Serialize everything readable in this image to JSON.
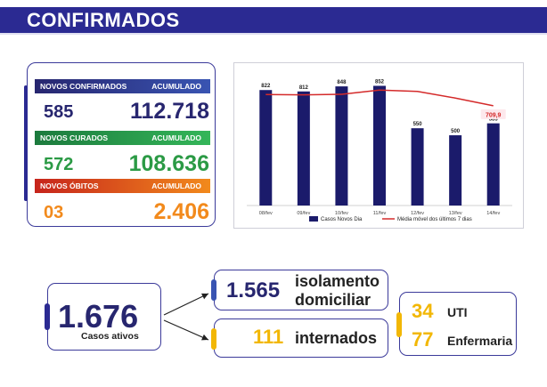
{
  "header": {
    "title": "CONFIRMADOS"
  },
  "stats": {
    "confirmed": {
      "label": "NOVOS CONFIRMADOS",
      "acc_label": "ACUMULADO",
      "new": "585",
      "total": "112.718"
    },
    "recovered": {
      "label": "NOVOS CURADOS",
      "acc_label": "ACUMULADO",
      "new": "572",
      "total": "108.636"
    },
    "deaths": {
      "label": "NOVOS ÓBITOS",
      "acc_label": "ACUMULADO",
      "new": "03",
      "total": "2.406"
    }
  },
  "chart_data": {
    "type": "bar",
    "categories": [
      "08/fev",
      "09/fev",
      "10/fev",
      "11/fev",
      "12/fev",
      "13/fev",
      "14/fev"
    ],
    "series": [
      {
        "name": "Casos Novos Dia",
        "type": "bar",
        "color": "#1b1b6b",
        "values": [
          822,
          812,
          848,
          852,
          550,
          500,
          585
        ]
      },
      {
        "name": "Média móvel dos últimos 7 dias",
        "type": "line",
        "color": "#d42a2a",
        "values": [
          790,
          788,
          792,
          822,
          812,
          765,
          709.9
        ]
      }
    ],
    "highlight_label": "709,9",
    "ylim": [
      0,
      950
    ],
    "grid": false,
    "legend": "bottom"
  },
  "active": {
    "value": "1.676",
    "label": "Casos ativos"
  },
  "home_isolation": {
    "value": "1.565",
    "line1": "isolamento",
    "line2": "domiciliar"
  },
  "hospitalized": {
    "value": "111",
    "label": "internados"
  },
  "beds": {
    "icu": {
      "value": "34",
      "label": "UTI"
    },
    "ward": {
      "value": "77",
      "label": "Enfermaria"
    }
  },
  "colors": {
    "navy": "#27266f",
    "green": "#2b9a45",
    "orange": "#f28a1c",
    "yellow": "#f2b705",
    "red": "#d42a2a"
  }
}
